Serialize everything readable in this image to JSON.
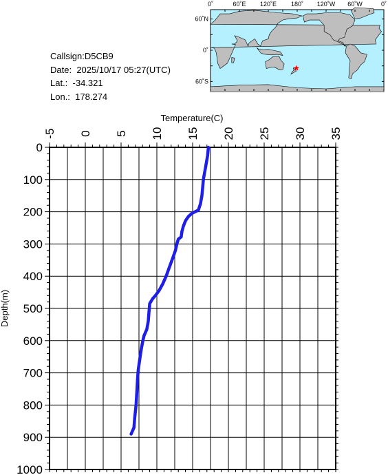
{
  "info": {
    "callsign_label": "Callsign:",
    "callsign": "D5CB9",
    "date_label": "Date:",
    "date": "2025/10/17 05:27(UTC)",
    "lat_label": "Lat.:",
    "lat": "-34.321",
    "lon_label": "Lon.:",
    "lon": "178.274"
  },
  "map": {
    "lon_labels": [
      "0˚",
      "60˚E",
      "120˚E",
      "180˚",
      "120˚W",
      "60˚W",
      "0˚"
    ],
    "lat_labels": [
      "60˚N",
      "0˚",
      "60˚S"
    ],
    "marker_lat": -34.321,
    "marker_lon": 178.274,
    "ocean_color": "#b4f0ff",
    "land_color": "#bebebe",
    "marker_color": "#ff0000"
  },
  "chart_data": {
    "type": "line",
    "xlabel": "Temperature(C)",
    "ylabel": "Depth(m)",
    "xlim": [
      -5,
      35
    ],
    "ylim": [
      0,
      1000
    ],
    "y_inverted": true,
    "x_ticks": [
      "-5",
      "0",
      "5",
      "10",
      "15",
      "20",
      "25",
      "30",
      "35"
    ],
    "y_ticks": [
      "0",
      "100",
      "200",
      "300",
      "400",
      "500",
      "600",
      "700",
      "800",
      "900",
      "1000"
    ],
    "grid": true,
    "line_color": "#1e1ee6",
    "series": [
      {
        "points": [
          [
            17.2,
            0
          ],
          [
            17.1,
            25
          ],
          [
            16.9,
            50
          ],
          [
            16.7,
            75
          ],
          [
            16.5,
            100
          ],
          [
            16.4,
            125
          ],
          [
            16.3,
            150
          ],
          [
            16.1,
            175
          ],
          [
            15.8,
            195
          ],
          [
            14.9,
            205
          ],
          [
            14.4,
            215
          ],
          [
            14.0,
            228
          ],
          [
            13.7,
            245
          ],
          [
            13.5,
            262
          ],
          [
            13.4,
            278
          ],
          [
            13.0,
            285
          ],
          [
            12.8,
            300
          ],
          [
            12.6,
            320
          ],
          [
            12.2,
            345
          ],
          [
            11.7,
            375
          ],
          [
            11.3,
            400
          ],
          [
            10.8,
            425
          ],
          [
            10.3,
            445
          ],
          [
            9.8,
            460
          ],
          [
            9.4,
            470
          ],
          [
            9.0,
            485
          ],
          [
            8.9,
            510
          ],
          [
            8.8,
            540
          ],
          [
            8.6,
            565
          ],
          [
            8.2,
            585
          ],
          [
            8.0,
            605
          ],
          [
            7.8,
            630
          ],
          [
            7.6,
            660
          ],
          [
            7.4,
            690
          ],
          [
            7.3,
            720
          ],
          [
            7.2,
            760
          ],
          [
            7.1,
            800
          ],
          [
            6.9,
            840
          ],
          [
            6.8,
            870
          ],
          [
            6.4,
            890
          ]
        ]
      }
    ]
  }
}
